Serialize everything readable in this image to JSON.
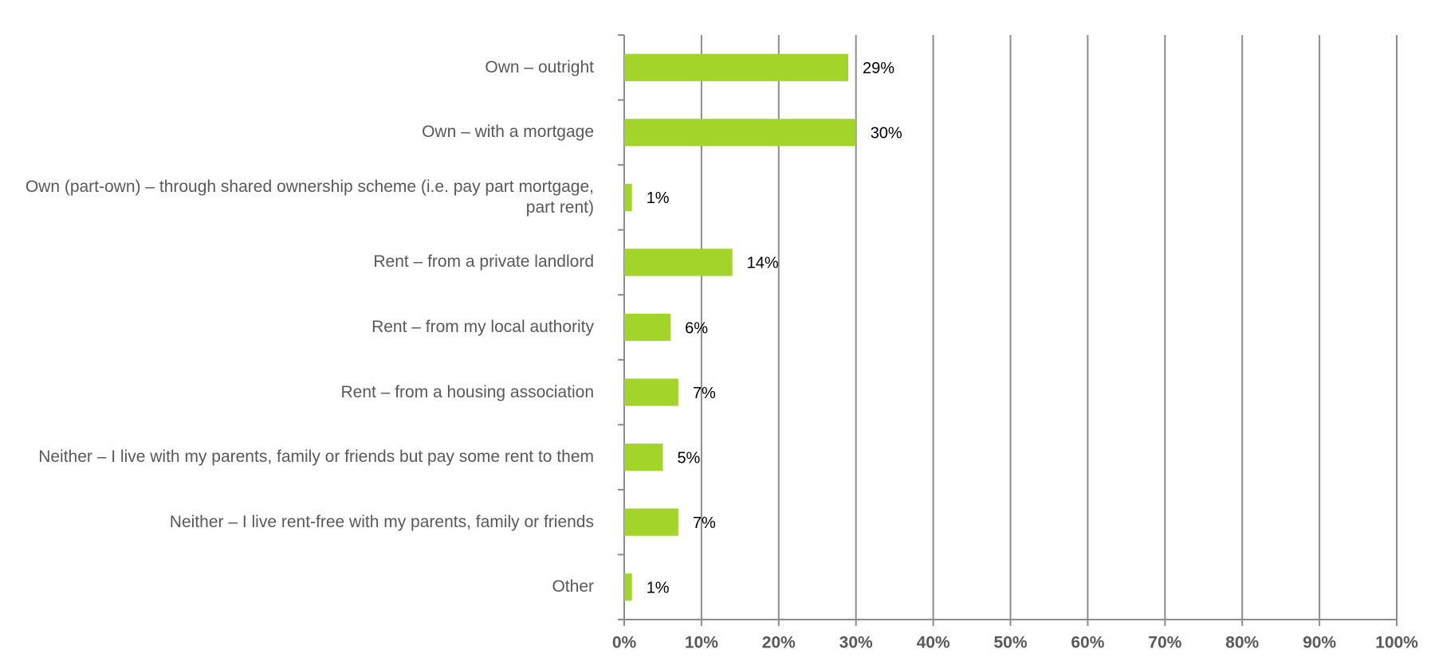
{
  "chart_data": {
    "type": "bar",
    "orientation": "horizontal",
    "categories": [
      "Own – outright",
      "Own – with a mortgage",
      "Own (part-own) – through shared ownership scheme (i.e. pay part mortgage, part rent)",
      "Rent – from a private landlord",
      "Rent – from my local authority",
      "Rent – from a housing association",
      "Neither – I live with my parents, family or friends but pay some rent to them",
      "Neither – I live rent-free with my parents, family or friends",
      "Other"
    ],
    "values": [
      29,
      30,
      1,
      14,
      6,
      7,
      5,
      7,
      1
    ],
    "value_labels": [
      "29%",
      "30%",
      "1%",
      "14%",
      "6%",
      "7%",
      "5%",
      "7%",
      "1%"
    ],
    "color": "#a2d42a",
    "xlim": [
      0,
      100
    ],
    "xticks": [
      {
        "value": 0,
        "label": "0%"
      },
      {
        "value": 10,
        "label": "10%"
      },
      {
        "value": 20,
        "label": "20%"
      },
      {
        "value": 30,
        "label": "30%"
      },
      {
        "value": 40,
        "label": "40%"
      },
      {
        "value": 50,
        "label": "50%"
      },
      {
        "value": 60,
        "label": "60%"
      },
      {
        "value": 70,
        "label": "70%"
      },
      {
        "value": 80,
        "label": "80%"
      },
      {
        "value": 90,
        "label": "90%"
      },
      {
        "value": 100,
        "label": "100%"
      }
    ],
    "grid": true
  }
}
